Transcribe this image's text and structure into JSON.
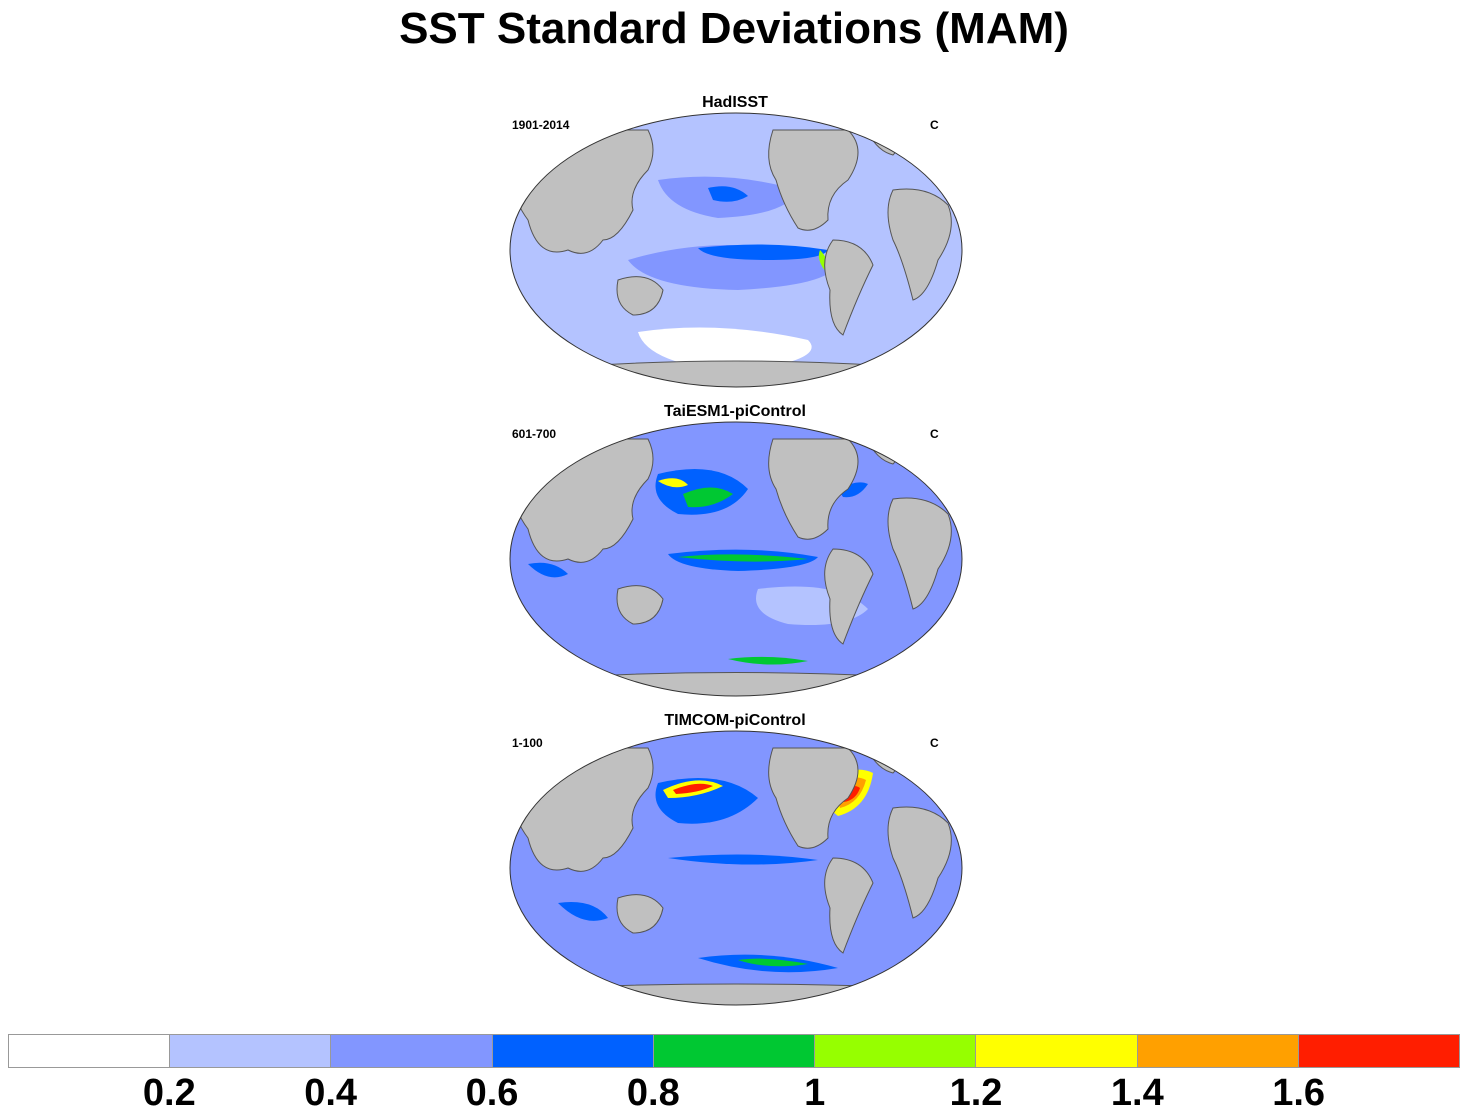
{
  "title": "SST Standard Deviations (MAM)",
  "panels": [
    {
      "title": "HadISST",
      "left_label": "1901-2014",
      "right_label": "C"
    },
    {
      "title": "TaiESM1-piControl",
      "left_label": "601-700",
      "right_label": "C"
    },
    {
      "title": "TIMCOM-piControl",
      "left_label": "1-100",
      "right_label": "C"
    }
  ],
  "colorbar": {
    "colors": [
      "#ffffff",
      "#b4c3ff",
      "#8296ff",
      "#0061ff",
      "#00c832",
      "#96ff00",
      "#ffff00",
      "#ffa000",
      "#ff1e00"
    ],
    "labels": [
      "0.2",
      "0.4",
      "0.6",
      "0.8",
      "1",
      "1.2",
      "1.4",
      "1.6"
    ]
  },
  "map_colors": {
    "land": "#c0c0c0",
    "ocean_base": "#b4c3ff",
    "coast": "#555555"
  }
}
